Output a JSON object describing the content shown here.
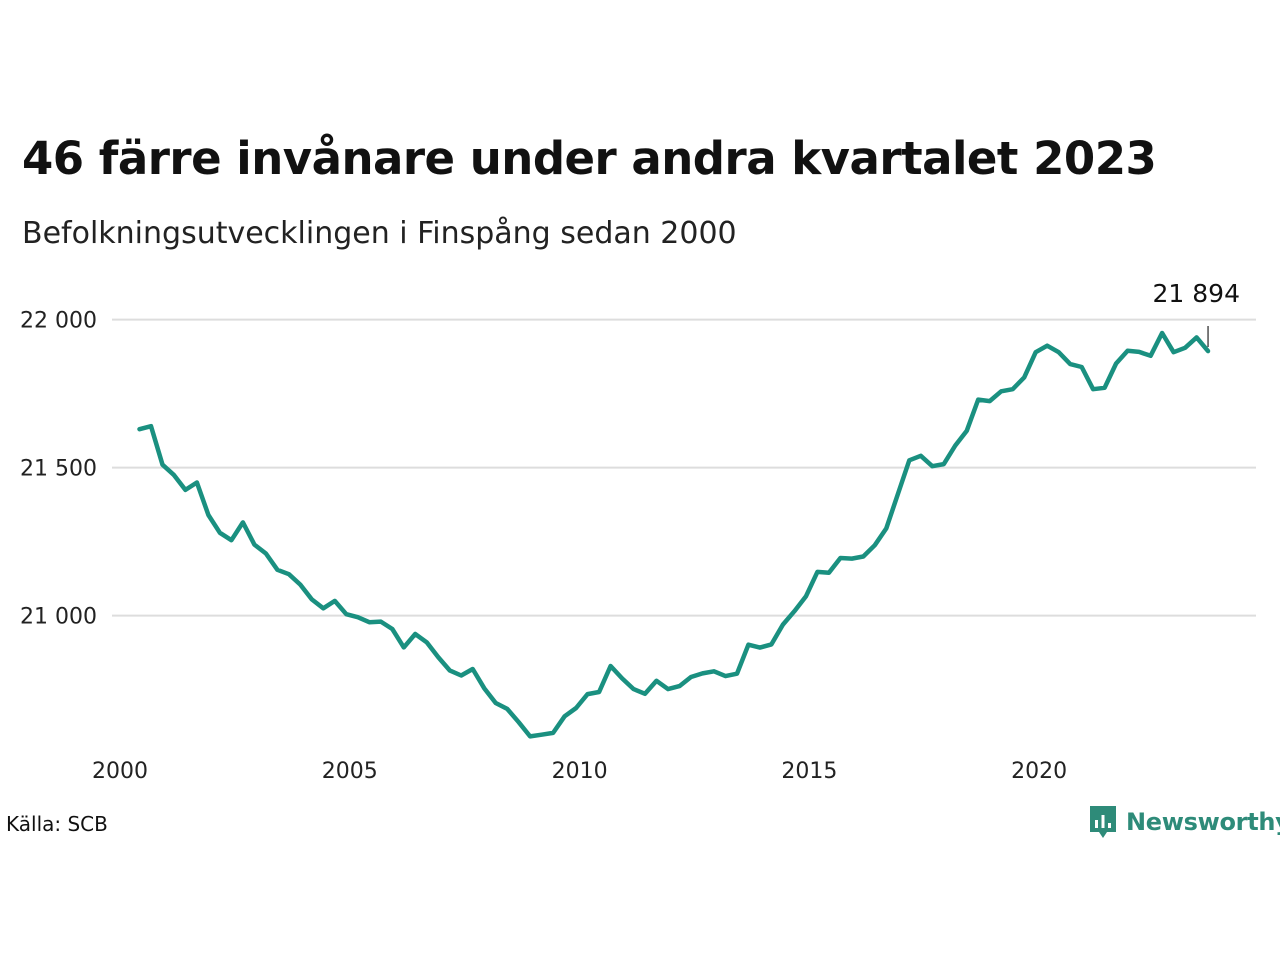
{
  "title": "46 färre invånare under andra kvartalet 2023",
  "subtitle": "Befolkningsutvecklingen i Finspång sedan 2000",
  "source": "Källa: SCB",
  "brand": "Newsworthy",
  "colors": {
    "line": "#1a9080",
    "grid": "#dddddd",
    "brand": "#2e8b79"
  },
  "chart_data": {
    "type": "line",
    "title": "46 färre invånare under andra kvartalet 2023",
    "subtitle": "Befolkningsutvecklingen i Finspång sedan 2000",
    "xlim": [
      2000,
      2024.5
    ],
    "ylim": [
      20580,
      22080
    ],
    "x_ticks": [
      2000,
      2005,
      2010,
      2015,
      2020
    ],
    "x_tick_labels": [
      "2000",
      "2005",
      "2010",
      "2015",
      "2020"
    ],
    "y_ticks": [
      21000,
      21500,
      22000
    ],
    "y_tick_labels": [
      "21 000",
      "21 500",
      "22 000"
    ],
    "grid": true,
    "end_label": "21 894",
    "series": [
      {
        "x_start": 2000.25,
        "x_step": 0.25,
        "values": [
          21630,
          21640,
          21510,
          21475,
          21425,
          21450,
          21340,
          21280,
          21255,
          21315,
          21240,
          21210,
          21155,
          21140,
          21105,
          21055,
          21025,
          21050,
          21005,
          20995,
          20978,
          20980,
          20955,
          20893,
          20938,
          20910,
          20860,
          20815,
          20798,
          20820,
          20755,
          20705,
          20685,
          20640,
          20592,
          20598,
          20604,
          20660,
          20688,
          20735,
          20742,
          20830,
          20788,
          20752,
          20736,
          20780,
          20752,
          20762,
          20793,
          20805,
          20812,
          20796,
          20804,
          20902,
          20892,
          20903,
          20970,
          21015,
          21065,
          21148,
          21145,
          21195,
          21193,
          21200,
          21238,
          21295,
          21410,
          21525,
          21540,
          21505,
          21512,
          21575,
          21625,
          21730,
          21725,
          21758,
          21765,
          21805,
          21890,
          21912,
          21890,
          21850,
          21840,
          21765,
          21770,
          21852,
          21895,
          21891,
          21878,
          21955,
          21890,
          21905,
          21940,
          21894
        ]
      }
    ]
  }
}
